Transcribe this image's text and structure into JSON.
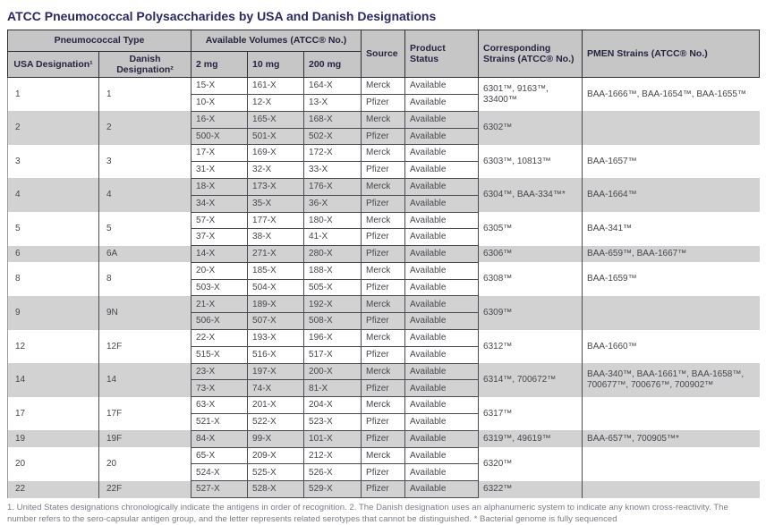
{
  "title": "ATCC Pneumococcal Polysaccharides by USA and Danish Designations",
  "colors": {
    "title_text": "#2b2963",
    "header_bg": "#c6c6c6",
    "row_alt_bg": "#d2d2d2",
    "body_text": "#47474d"
  },
  "table": {
    "header": {
      "pneumococcal_type": "Pneumococcal Type",
      "available_volumes": "Available Volumes (ATCC® No.)",
      "usa_designation": "USA Designation¹",
      "danish_designation": "Danish Designation²",
      "vol_2mg": "2 mg",
      "vol_10mg": "10 mg",
      "vol_200mg": "200 mg",
      "source": "Source",
      "product_status": "Product Status",
      "corresponding_strains": "Corresponding Strains (ATCC® No.)",
      "pmen_strains": "PMEN Strains (ATCC® No.)"
    },
    "groups": [
      {
        "usa": "1",
        "danish": "1",
        "corresponding": "6301™, 9163™, 33400™",
        "pmen": "BAA-1666™, BAA-1654™, BAA-1655™",
        "rows": [
          {
            "vol_2mg": "15-X",
            "vol_10mg": "161-X",
            "vol_200mg": "164-X",
            "source": "Merck",
            "status": "Available"
          },
          {
            "vol_2mg": "10-X",
            "vol_10mg": "12-X",
            "vol_200mg": "13-X",
            "source": "Pfizer",
            "status": "Available"
          }
        ]
      },
      {
        "usa": "2",
        "danish": "2",
        "corresponding": "6302™",
        "pmen": "",
        "rows": [
          {
            "vol_2mg": "16-X",
            "vol_10mg": "165-X",
            "vol_200mg": "168-X",
            "source": "Merck",
            "status": "Available"
          },
          {
            "vol_2mg": "500-X",
            "vol_10mg": "501-X",
            "vol_200mg": "502-X",
            "source": "Pfizer",
            "status": "Available"
          }
        ]
      },
      {
        "usa": "3",
        "danish": "3",
        "corresponding": "6303™, 10813™",
        "pmen": "BAA-1657™",
        "rows": [
          {
            "vol_2mg": "17-X",
            "vol_10mg": "169-X",
            "vol_200mg": "172-X",
            "source": "Merck",
            "status": "Available"
          },
          {
            "vol_2mg": "31-X",
            "vol_10mg": "32-X",
            "vol_200mg": "33-X",
            "source": "Pfizer",
            "status": "Available"
          }
        ]
      },
      {
        "usa": "4",
        "danish": "4",
        "corresponding": "6304™, BAA-334™*",
        "pmen": "BAA-1664™",
        "rows": [
          {
            "vol_2mg": "18-X",
            "vol_10mg": "173-X",
            "vol_200mg": "176-X",
            "source": "Merck",
            "status": "Available"
          },
          {
            "vol_2mg": "34-X",
            "vol_10mg": "35-X",
            "vol_200mg": "36-X",
            "source": "Pfizer",
            "status": "Available"
          }
        ]
      },
      {
        "usa": "5",
        "danish": "5",
        "corresponding": "6305™",
        "pmen": "BAA-341™",
        "rows": [
          {
            "vol_2mg": "57-X",
            "vol_10mg": "177-X",
            "vol_200mg": "180-X",
            "source": "Merck",
            "status": "Available"
          },
          {
            "vol_2mg": "37-X",
            "vol_10mg": "38-X",
            "vol_200mg": "41-X",
            "source": "Pfizer",
            "status": "Available"
          }
        ]
      },
      {
        "usa": "6",
        "danish": "6A",
        "corresponding": "6306™",
        "pmen": "BAA-659™, BAA-1667™",
        "rows": [
          {
            "vol_2mg": "14-X",
            "vol_10mg": "271-X",
            "vol_200mg": "280-X",
            "source": "Pfizer",
            "status": "Available"
          }
        ]
      },
      {
        "usa": "8",
        "danish": "8",
        "corresponding": "6308™",
        "pmen": "BAA-1659™",
        "rows": [
          {
            "vol_2mg": "20-X",
            "vol_10mg": "185-X",
            "vol_200mg": "188-X",
            "source": "Merck",
            "status": "Available"
          },
          {
            "vol_2mg": "503-X",
            "vol_10mg": "504-X",
            "vol_200mg": "505-X",
            "source": "Pfizer",
            "status": "Available"
          }
        ]
      },
      {
        "usa": "9",
        "danish": "9N",
        "corresponding": "6309™",
        "pmen": "",
        "rows": [
          {
            "vol_2mg": "21-X",
            "vol_10mg": "189-X",
            "vol_200mg": "192-X",
            "source": "Merck",
            "status": "Available"
          },
          {
            "vol_2mg": "506-X",
            "vol_10mg": "507-X",
            "vol_200mg": "508-X",
            "source": "Pfizer",
            "status": "Available"
          }
        ]
      },
      {
        "usa": "12",
        "danish": "12F",
        "corresponding": "6312™",
        "pmen": "BAA-1660™",
        "rows": [
          {
            "vol_2mg": "22-X",
            "vol_10mg": "193-X",
            "vol_200mg": "196-X",
            "source": "Merck",
            "status": "Available"
          },
          {
            "vol_2mg": "515-X",
            "vol_10mg": "516-X",
            "vol_200mg": "517-X",
            "source": "Pfizer",
            "status": "Available"
          }
        ]
      },
      {
        "usa": "14",
        "danish": "14",
        "corresponding": "6314™, 700672™",
        "pmen": "BAA-340™, BAA-1661™, BAA-1658™, 700677™, 700676™, 700902™",
        "rows": [
          {
            "vol_2mg": "23-X",
            "vol_10mg": "197-X",
            "vol_200mg": "200-X",
            "source": "Merck",
            "status": "Available"
          },
          {
            "vol_2mg": "73-X",
            "vol_10mg": "74-X",
            "vol_200mg": "81-X",
            "source": "Pfizer",
            "status": "Available"
          }
        ]
      },
      {
        "usa": "17",
        "danish": "17F",
        "corresponding": "6317™",
        "pmen": "",
        "rows": [
          {
            "vol_2mg": "63-X",
            "vol_10mg": "201-X",
            "vol_200mg": "204-X",
            "source": "Merck",
            "status": "Available"
          },
          {
            "vol_2mg": "521-X",
            "vol_10mg": "522-X",
            "vol_200mg": "523-X",
            "source": "Pfizer",
            "status": "Available"
          }
        ]
      },
      {
        "usa": "19",
        "danish": "19F",
        "corresponding": "6319™, 49619™",
        "pmen": "BAA-657™, 700905™*",
        "rows": [
          {
            "vol_2mg": "84-X",
            "vol_10mg": "99-X",
            "vol_200mg": "101-X",
            "source": "Pfizer",
            "status": "Available"
          }
        ]
      },
      {
        "usa": "20",
        "danish": "20",
        "corresponding": "6320™",
        "pmen": "",
        "rows": [
          {
            "vol_2mg": "65-X",
            "vol_10mg": "209-X",
            "vol_200mg": "212-X",
            "source": "Merck",
            "status": "Available"
          },
          {
            "vol_2mg": "524-X",
            "vol_10mg": "525-X",
            "vol_200mg": "526-X",
            "source": "Pfizer",
            "status": "Available"
          }
        ]
      },
      {
        "usa": "22",
        "danish": "22F",
        "corresponding": "6322™",
        "pmen": "",
        "rows": [
          {
            "vol_2mg": "527-X",
            "vol_10mg": "528-X",
            "vol_200mg": "529-X",
            "source": "Pfizer",
            "status": "Available"
          }
        ]
      }
    ]
  },
  "footnote": "1. United States designations chronologically indicate the antigens in order of recognition. 2. The Danish designation uses an alphanumeric system to indicate any known cross-reactivity. The number refers to the sero-capsular antigen group, and the letter represents related serotypes that cannot be distinguished. * Bacterial genome is fully sequenced"
}
